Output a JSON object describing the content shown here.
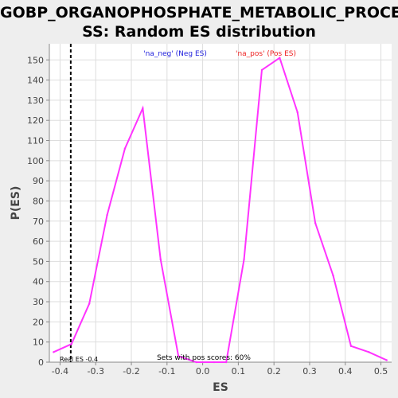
{
  "chart_data": {
    "type": "line",
    "title_lines": [
      "GOBP_ORGANOPHOSPHATE_METABOLIC_PROCE",
      "SS: Random ES distribution"
    ],
    "xlabel": "ES",
    "ylabel": "P(ES)",
    "xlim": [
      -0.43,
      0.53
    ],
    "ylim": [
      0,
      158
    ],
    "x_ticks": [
      -0.4,
      -0.3,
      -0.2,
      -0.1,
      0.0,
      0.1,
      0.2,
      0.3,
      0.4,
      0.5
    ],
    "x_tick_labels": [
      "-0.4",
      "-0.3",
      "-0.2",
      "-0.1",
      "0.0",
      "0.1",
      "0.2",
      "0.3",
      "0.4",
      "0.5"
    ],
    "y_ticks": [
      0,
      10,
      20,
      30,
      40,
      50,
      60,
      70,
      80,
      90,
      100,
      110,
      120,
      130,
      140,
      150
    ],
    "y_tick_labels": [
      "0",
      "10",
      "20",
      "30",
      "40",
      "50",
      "60",
      "70",
      "80",
      "90",
      "100",
      "110",
      "120",
      "130",
      "140",
      "150"
    ],
    "grid": true,
    "series": [
      {
        "color": "#ff33ff",
        "x": [
          -0.418,
          -0.368,
          -0.318,
          -0.268,
          -0.218,
          -0.168,
          -0.118,
          -0.068,
          -0.018,
          0.032,
          0.066,
          0.116,
          0.166,
          0.216,
          0.266,
          0.316,
          0.366,
          0.416,
          0.466,
          0.516
        ],
        "y": [
          5,
          9,
          29,
          73,
          106,
          126,
          51,
          3,
          0,
          0,
          0,
          51,
          145,
          151,
          124,
          69,
          43,
          8,
          5,
          1
        ]
      }
    ],
    "real_es": -0.37,
    "legend": [
      {
        "text": "'na_neg' (Neg ES)",
        "color": "#2222dd"
      },
      {
        "text": "'na_pos' (Pos ES)",
        "color": "#ee2222"
      }
    ],
    "annotations": {
      "real_es_label": "Real ES -0.4",
      "pos_scores_label": "Sets with pos scores: 60%"
    }
  }
}
